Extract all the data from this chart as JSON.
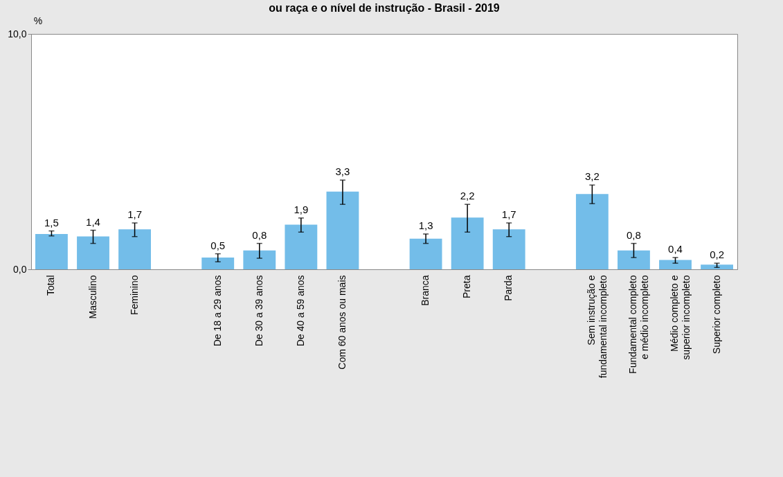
{
  "chart_data": {
    "type": "bar",
    "title": "ou raça e o nível de instrução - Brasil - 2019",
    "ylabel": "%",
    "categories": [
      "Total",
      "Masculino",
      "Feminino",
      null,
      "De 18 a 29 anos",
      "De 30 a 39 anos",
      "De 40 a 59 anos",
      "Com 60 anos ou mais",
      null,
      "Branca",
      "Preta",
      "Parda",
      null,
      "Sem instrução e\nfundamental incompleto",
      "Fundamental completo\ne médio incompleto",
      "Médio completo e\nsuperior incompleto",
      "Superior completo"
    ],
    "values": [
      1.5,
      1.4,
      1.7,
      null,
      0.5,
      0.8,
      1.9,
      3.3,
      null,
      1.3,
      2.2,
      1.7,
      null,
      3.2,
      0.8,
      0.4,
      0.2
    ],
    "errors": [
      [
        1.42,
        1.63
      ],
      [
        1.1,
        1.66
      ],
      [
        1.39,
        1.97
      ],
      null,
      [
        0.32,
        0.66
      ],
      [
        0.47,
        1.1
      ],
      [
        1.58,
        2.18
      ],
      [
        2.76,
        3.79
      ],
      null,
      [
        1.1,
        1.5
      ],
      [
        1.58,
        2.76
      ],
      [
        1.39,
        1.97
      ],
      null,
      [
        2.79,
        3.58
      ],
      [
        0.5,
        1.1
      ],
      [
        0.26,
        0.5
      ],
      [
        0.08,
        0.26
      ]
    ],
    "value_labels": [
      "1,5",
      "1,4",
      "1,7",
      null,
      "0,5",
      "0,8",
      "1,9",
      "3,3",
      null,
      "1,3",
      "2,2",
      "1,7",
      null,
      "3,2",
      "0,8",
      "0,4",
      "0,2"
    ],
    "color": "#73bde9",
    "ylim": [
      0,
      10
    ],
    "yticks": [
      {
        "value": 0,
        "label": "0,0"
      },
      {
        "value": 10,
        "label": "10,0"
      }
    ],
    "grid": false
  }
}
